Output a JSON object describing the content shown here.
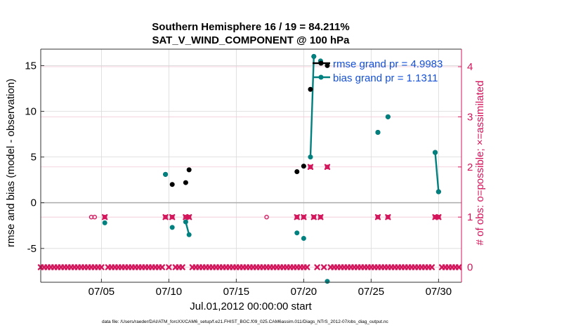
{
  "chart_data": {
    "type": "scatter",
    "title": "Southern Hemisphere 16 / 19 = 84.211%",
    "subtitle": "SAT_V_WIND_COMPONENT @ 100 hPa",
    "xlabel": "Jul.01,2012 00:00:00 start",
    "ylabel_left": "rmse and bias (model - observation)",
    "ylabel_right": "# of obs: o=possible; ×=assimilated",
    "footer": "data file: /Users/raeder/DAI/ATM_forcXX/CAM6_setup/f.e21.FHIST_BGC.f09_025.CAM6assim.011/Diags_NTrS_2012-07/obs_diag_output.nc",
    "xlim": [
      1,
      32.2
    ],
    "ylim_left": [
      -8.7,
      16.8
    ],
    "ylim_right": [
      -0.3,
      4.35
    ],
    "x_ticks": [
      {
        "x": 5.5,
        "label": "07/05"
      },
      {
        "x": 10.5,
        "label": "07/10"
      },
      {
        "x": 15.5,
        "label": "07/15"
      },
      {
        "x": 20.5,
        "label": "07/20"
      },
      {
        "x": 25.5,
        "label": "07/25"
      },
      {
        "x": 30.5,
        "label": "07/30"
      }
    ],
    "y_ticks_left": [
      -5,
      0,
      5,
      10,
      15
    ],
    "y_ticks_right": [
      0,
      1,
      2,
      3,
      4
    ],
    "grid": true,
    "legend": {
      "placement": "top-right",
      "entries": [
        {
          "label": "rmse grand pr = 4.9983",
          "color": "#000000"
        },
        {
          "label": "bias grand pr = 1.1311",
          "color": "#00807f"
        }
      ]
    },
    "colors": {
      "rmse": "#000000",
      "bias": "#00807f",
      "obs": "#d4145a",
      "text_blue": "#1450d8"
    },
    "rmse": [
      [
        10.25,
        3.1
      ],
      [
        10.75,
        2.0
      ],
      [
        11.75,
        2.2
      ],
      [
        12.0,
        3.6
      ],
      [
        20.0,
        3.4
      ],
      [
        20.5,
        4.0
      ],
      [
        21.0,
        12.4
      ],
      [
        21.25,
        16.0
      ],
      [
        21.75,
        15.5
      ],
      [
        22.25,
        15.0
      ],
      [
        26.0,
        7.7
      ],
      [
        26.75,
        9.4
      ],
      [
        30.25,
        5.5
      ],
      [
        30.5,
        1.2
      ]
    ],
    "bias": [
      [
        5.75,
        -2.2
      ],
      [
        10.25,
        3.1
      ],
      [
        10.75,
        -2.7
      ],
      [
        11.75,
        -2.1
      ],
      [
        12.0,
        -3.5
      ],
      [
        20.0,
        -3.3
      ],
      [
        20.5,
        -3.9
      ],
      [
        21.0,
        5.0
      ],
      [
        21.25,
        16.0
      ],
      [
        21.75,
        15.5
      ],
      [
        22.25,
        -8.6
      ],
      [
        26.0,
        7.7
      ],
      [
        26.75,
        9.4
      ],
      [
        30.25,
        5.5
      ],
      [
        30.5,
        1.2
      ]
    ],
    "bias_segments": [
      [
        [
          11.75,
          -2.1
        ],
        [
          12.0,
          -3.5
        ]
      ],
      [
        [
          21.0,
          5.0
        ],
        [
          21.25,
          16.0
        ]
      ],
      [
        [
          30.25,
          5.5
        ],
        [
          30.5,
          1.2
        ]
      ]
    ],
    "obs_possible": [
      [
        4.75,
        1
      ],
      [
        5.0,
        1
      ],
      [
        5.75,
        1
      ],
      [
        10.25,
        1
      ],
      [
        10.75,
        1
      ],
      [
        11.75,
        1
      ],
      [
        12.0,
        1
      ],
      [
        17.75,
        1
      ],
      [
        20.0,
        1
      ],
      [
        20.5,
        1
      ],
      [
        21.0,
        2
      ],
      [
        21.25,
        1
      ],
      [
        21.75,
        1
      ],
      [
        22.25,
        2
      ],
      [
        26.0,
        1
      ],
      [
        26.75,
        1
      ],
      [
        30.25,
        1
      ],
      [
        30.5,
        1
      ]
    ],
    "obs_assimilated": [
      [
        5.75,
        1
      ],
      [
        10.25,
        1
      ],
      [
        10.75,
        1
      ],
      [
        11.75,
        1
      ],
      [
        12.0,
        1
      ],
      [
        20.0,
        1
      ],
      [
        20.5,
        1
      ],
      [
        21.0,
        2
      ],
      [
        21.25,
        1
      ],
      [
        21.75,
        1
      ],
      [
        22.25,
        2
      ],
      [
        26.0,
        1
      ],
      [
        26.75,
        1
      ],
      [
        30.25,
        1
      ],
      [
        30.5,
        1
      ]
    ],
    "obs_assimilated_zero_gaps": [
      5.75,
      10.25,
      10.75,
      11.75,
      12.0,
      21.0,
      21.25,
      21.75,
      22.25,
      30.25,
      30.5
    ]
  }
}
